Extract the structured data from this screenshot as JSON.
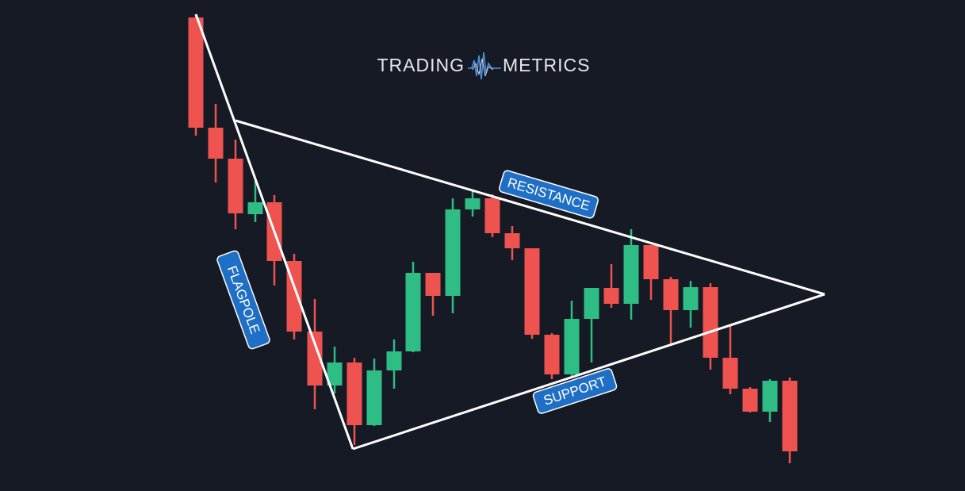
{
  "logo": {
    "left": "TRADING",
    "right": "METRICS"
  },
  "labels": {
    "resistance": "RESISTANCE",
    "support": "SUPPORT",
    "flagpole": "FLAGPOLE"
  }
}
